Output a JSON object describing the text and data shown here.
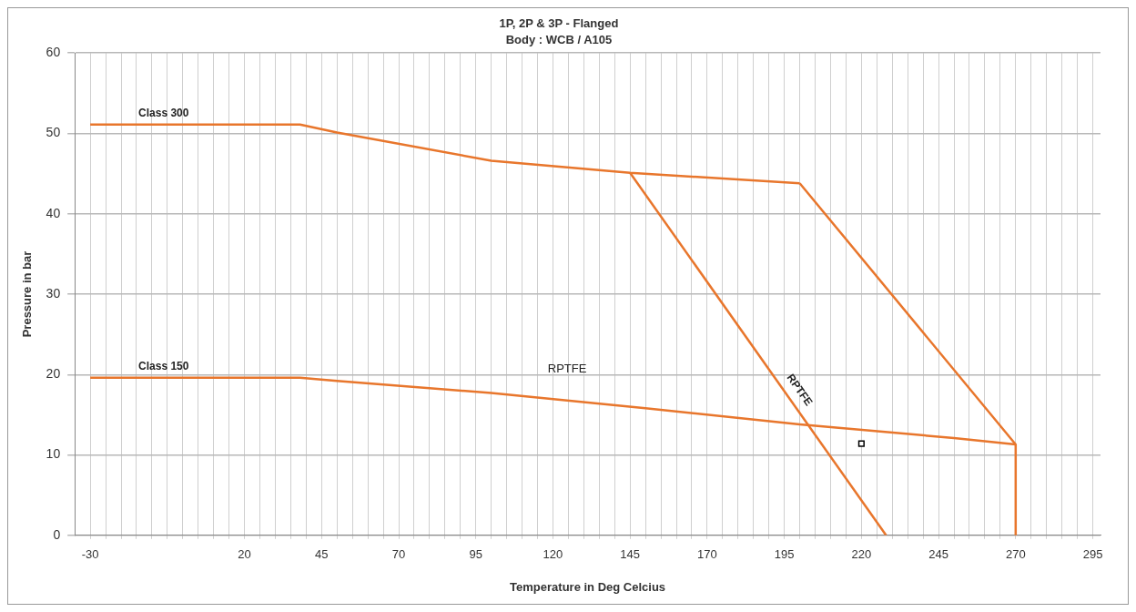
{
  "chart_data": {
    "type": "line",
    "title": "1P, 2P & 3P - Flanged",
    "subtitle": "Body : WCB / A105",
    "xlabel": "Temperature in Deg Celcius",
    "ylabel": "Pressure in bar",
    "xlim": [
      -35,
      297.5
    ],
    "ylim": [
      0,
      60
    ],
    "xticks": [
      -30,
      {
        "value": -25,
        "label": null
      },
      {
        "value": -20,
        "label": null
      },
      {
        "value": -15,
        "label": null
      },
      {
        "value": -10,
        "label": null
      },
      {
        "value": -5,
        "label": null
      },
      {
        "value": 0,
        "label": null
      },
      {
        "value": 5,
        "label": null
      },
      {
        "value": 10,
        "label": null
      },
      {
        "value": 15,
        "label": null
      },
      20,
      {
        "value": 25,
        "label": null
      },
      {
        "value": 30,
        "label": null
      },
      {
        "value": 35,
        "label": null
      },
      {
        "value": 40,
        "label": null
      },
      45,
      {
        "value": 50,
        "label": null
      },
      {
        "value": 55,
        "label": null
      },
      {
        "value": 60,
        "label": null
      },
      {
        "value": 65,
        "label": null
      },
      70,
      {
        "value": 75,
        "label": null
      },
      {
        "value": 80,
        "label": null
      },
      {
        "value": 85,
        "label": null
      },
      {
        "value": 90,
        "label": null
      },
      95,
      {
        "value": 100,
        "label": null
      },
      {
        "value": 105,
        "label": null
      },
      {
        "value": 110,
        "label": null
      },
      {
        "value": 115,
        "label": null
      },
      120,
      {
        "value": 125,
        "label": null
      },
      {
        "value": 130,
        "label": null
      },
      {
        "value": 135,
        "label": null
      },
      {
        "value": 140,
        "label": null
      },
      145,
      {
        "value": 150,
        "label": null
      },
      {
        "value": 155,
        "label": null
      },
      {
        "value": 160,
        "label": null
      },
      {
        "value": 165,
        "label": null
      },
      170,
      {
        "value": 175,
        "label": null
      },
      {
        "value": 180,
        "label": null
      },
      {
        "value": 185,
        "label": null
      },
      {
        "value": 190,
        "label": null
      },
      195,
      {
        "value": 200,
        "label": null
      },
      {
        "value": 205,
        "label": null
      },
      {
        "value": 210,
        "label": null
      },
      {
        "value": 215,
        "label": null
      },
      220,
      {
        "value": 225,
        "label": null
      },
      {
        "value": 230,
        "label": null
      },
      {
        "value": 235,
        "label": null
      },
      {
        "value": 240,
        "label": null
      },
      245,
      {
        "value": 250,
        "label": null
      },
      {
        "value": 255,
        "label": null
      },
      {
        "value": 260,
        "label": null
      },
      {
        "value": 265,
        "label": null
      },
      270,
      {
        "value": 275,
        "label": null
      },
      {
        "value": 280,
        "label": null
      },
      {
        "value": 285,
        "label": null
      },
      {
        "value": 290,
        "label": null
      },
      295
    ],
    "yticks": [
      0,
      10,
      20,
      30,
      40,
      50,
      60
    ],
    "grid": true,
    "legend": false,
    "marker": "none",
    "line_style": "solid",
    "series": [
      {
        "name": "Class 300",
        "color": "#e8762c",
        "x": [
          -30,
          38,
          50,
          100,
          145,
          200
        ],
        "values": [
          51.1,
          51.1,
          50.1,
          46.6,
          45.1,
          43.8
        ]
      },
      {
        "name": "Class 150",
        "color": "#e8762c",
        "x": [
          -30,
          38,
          50,
          100,
          150,
          200,
          250,
          270
        ],
        "values": [
          19.6,
          19.6,
          19.2,
          17.7,
          15.8,
          13.8,
          12.1,
          11.3
        ]
      },
      {
        "name": "RPTFE",
        "color": "#e8762c",
        "x": [
          145,
          228
        ],
        "values": [
          45.1,
          0
        ]
      },
      {
        "color": "#e8762c",
        "x": [
          200,
          270,
          270
        ],
        "values": [
          43.8,
          11.3,
          0
        ]
      },
      {
        "type": "scatter",
        "marker": "square",
        "color": "#000000",
        "x": [
          220
        ],
        "values": [
          11.4
        ]
      }
    ],
    "annotations": [
      "RPTFE"
    ]
  }
}
